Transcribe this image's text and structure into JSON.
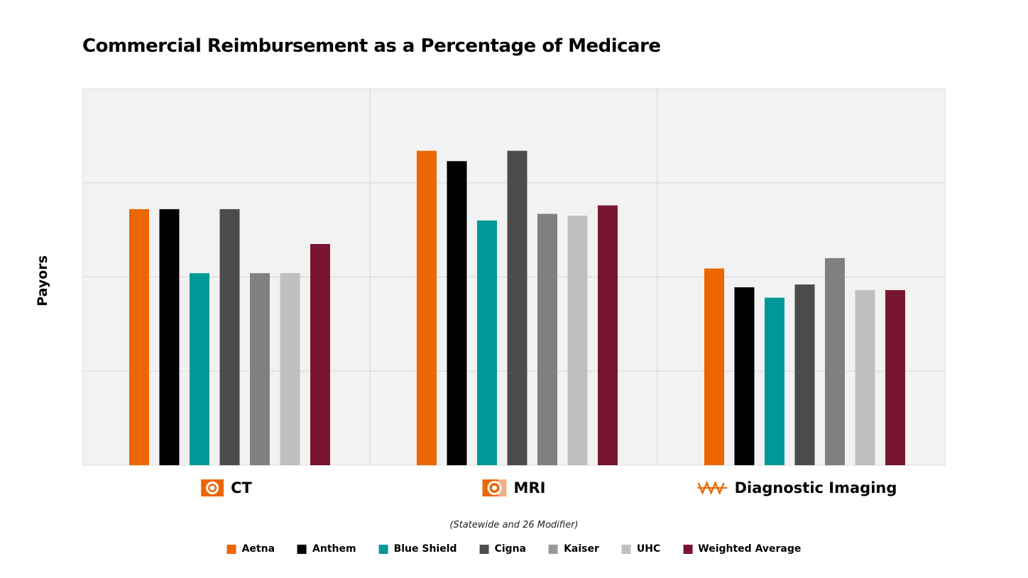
{
  "chart_data": {
    "type": "bar",
    "title": "Commercial Reimbursement as a Percentage of Medicare",
    "subtitle": "(Statewide and 26 Modifier)",
    "ylabel": "Payors",
    "xlabel": "",
    "ylim": [
      0,
      4
    ],
    "grid": true,
    "legend_placement": "bottom",
    "categories": [
      "CT",
      "MRI",
      "Diagnostic Imaging"
    ],
    "category_icons": [
      "ct-scanner-icon",
      "mri-scanner-icon",
      "waveform-icon"
    ],
    "series": [
      {
        "name": "Aetna",
        "color": "#EC6602",
        "values": [
          2.72,
          3.34,
          2.09
        ]
      },
      {
        "name": "Anthem",
        "color": "#000000",
        "values": [
          2.72,
          3.23,
          1.89
        ]
      },
      {
        "name": "Blue Shield",
        "color": "#009999",
        "values": [
          2.04,
          2.6,
          1.78
        ]
      },
      {
        "name": "Cigna",
        "color": "#4C4C4C",
        "values": [
          2.72,
          3.34,
          1.92
        ]
      },
      {
        "name": "Kaiser",
        "color": "#808080",
        "values": [
          2.04,
          2.67,
          2.2
        ]
      },
      {
        "name": "UHC",
        "color": "#BFBFBF",
        "values": [
          2.04,
          2.65,
          1.86
        ]
      },
      {
        "name": "Weighted Average",
        "color": "#7A1531",
        "values": [
          2.35,
          2.76,
          1.86
        ]
      }
    ]
  }
}
